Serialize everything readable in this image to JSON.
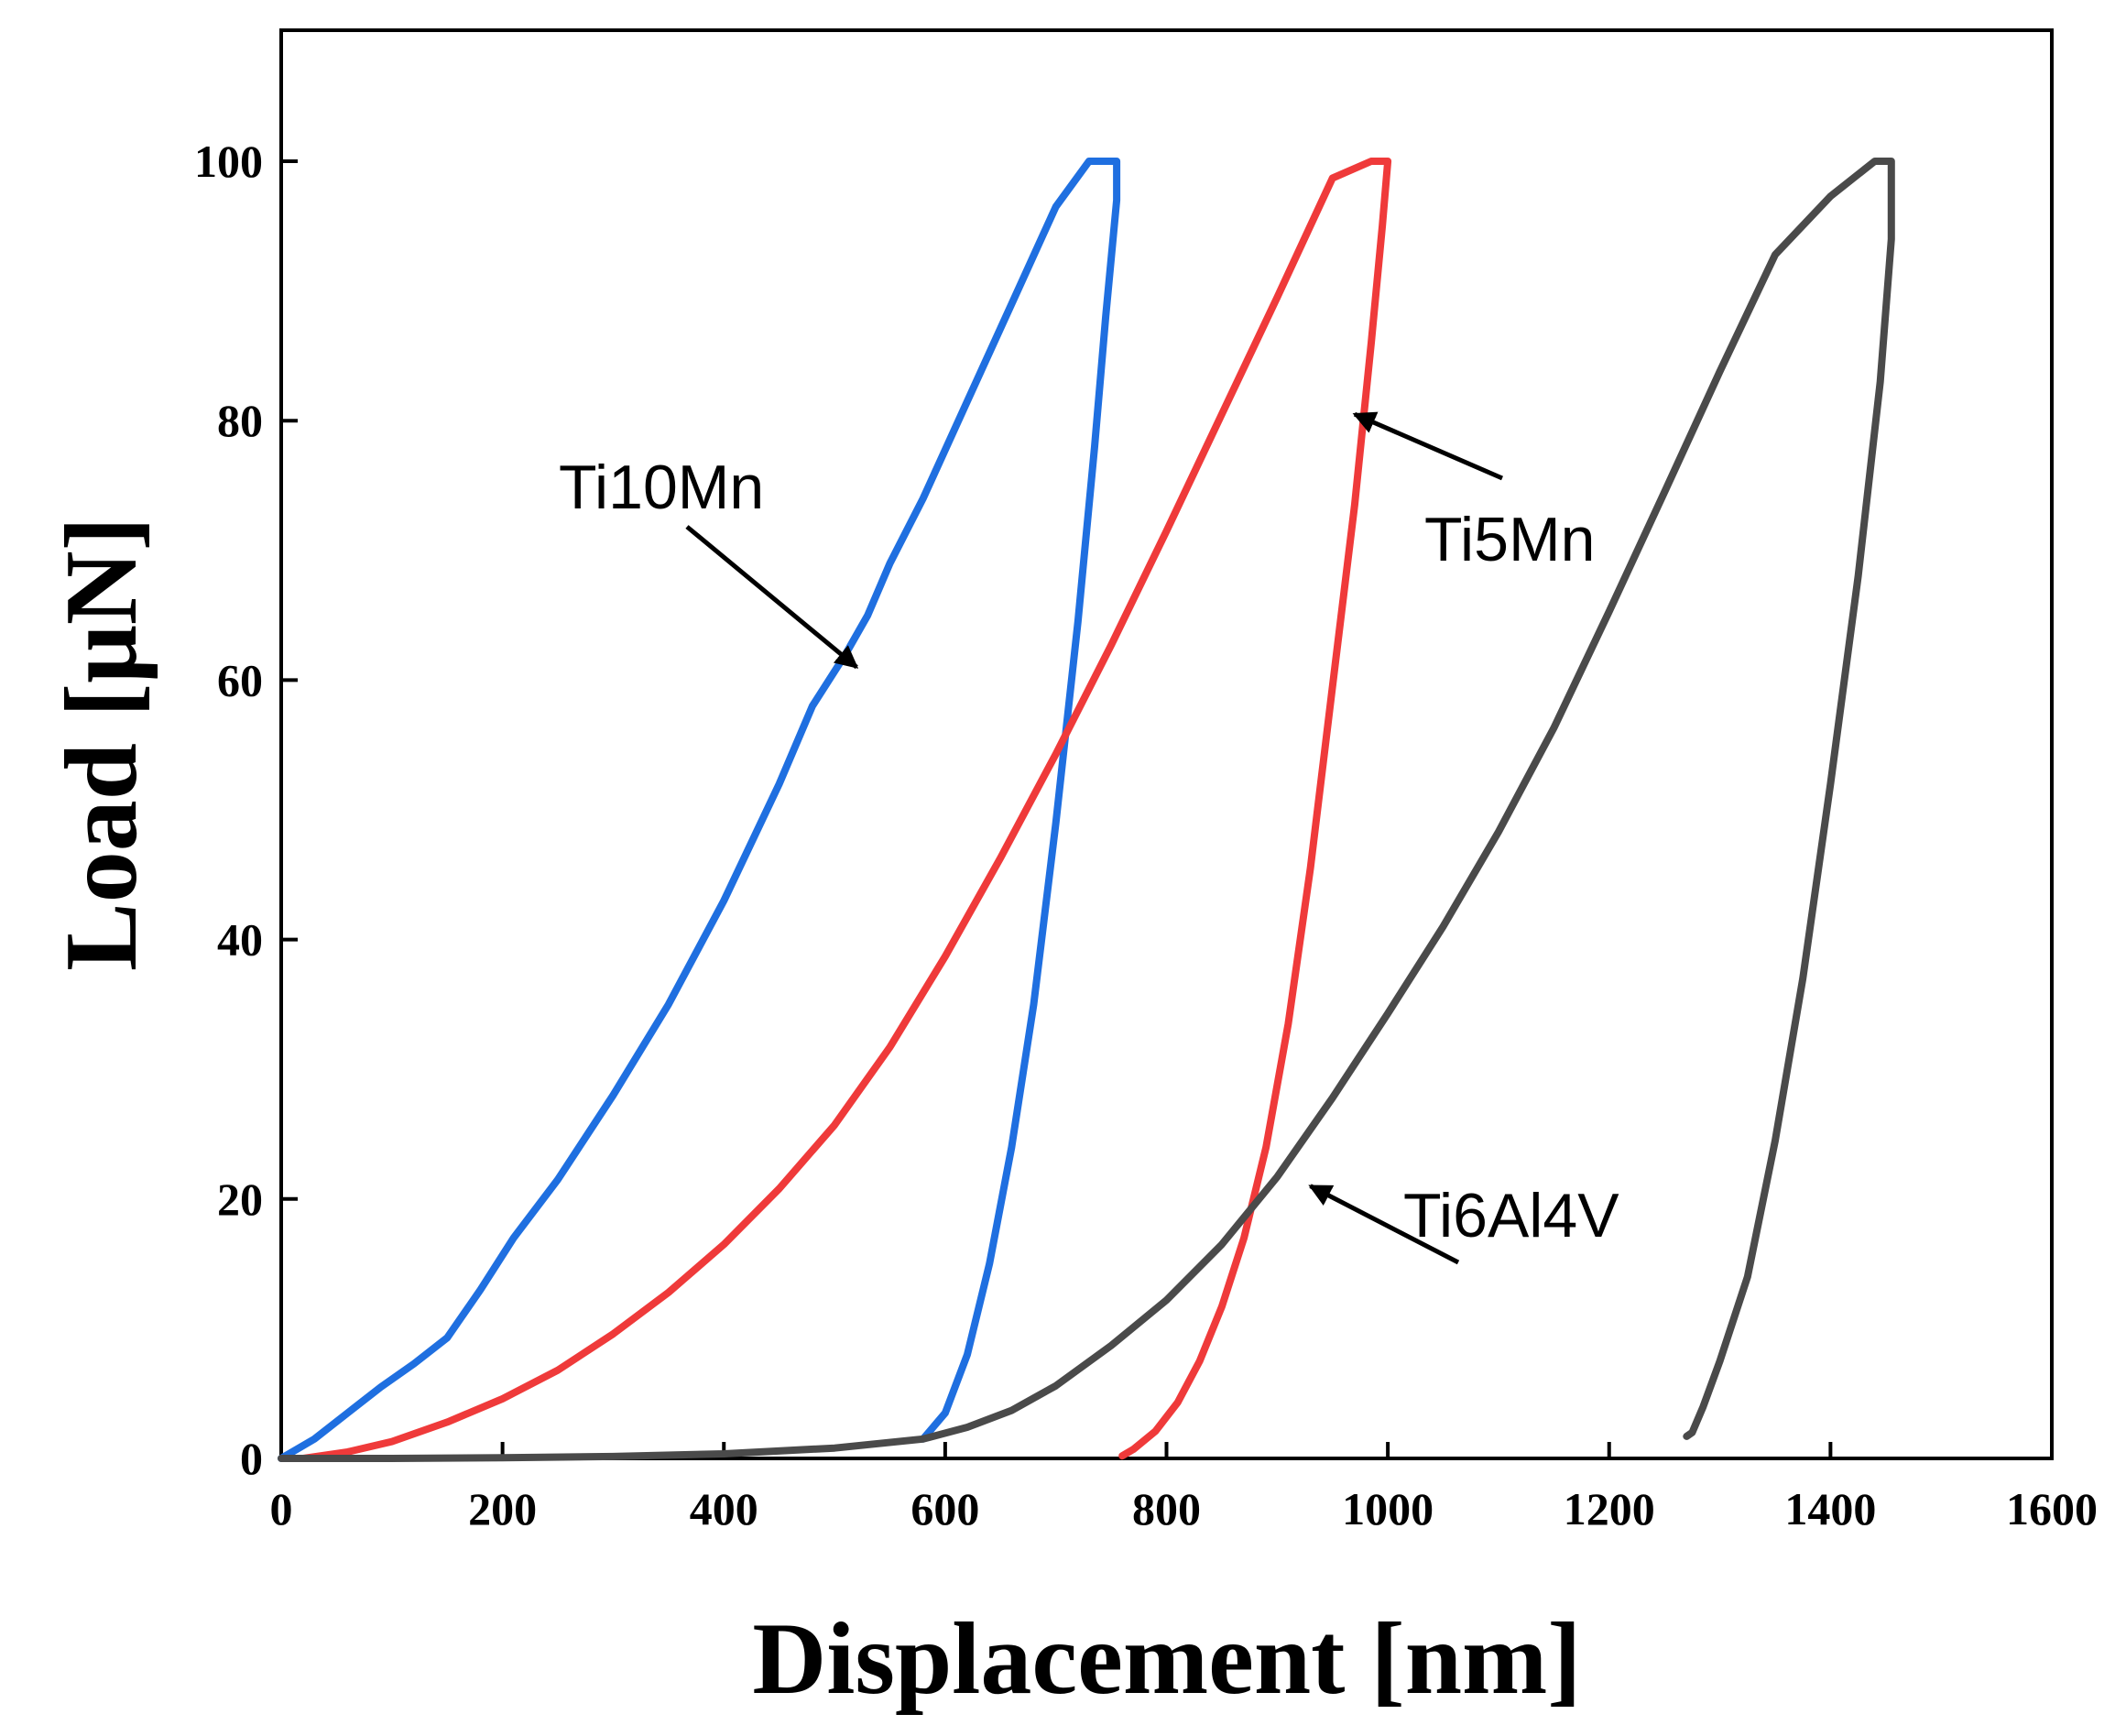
{
  "chart_data": {
    "type": "line",
    "title": "",
    "xlabel": "Displacement [nm]",
    "ylabel": "Load [μN]",
    "xlim": [
      0,
      1600
    ],
    "ylim": [
      0,
      110
    ],
    "xticks": [
      0,
      200,
      400,
      600,
      800,
      1000,
      1200,
      1400,
      1600
    ],
    "yticks": [
      0,
      20,
      40,
      60,
      80,
      100
    ],
    "grid": false,
    "legend": "none",
    "series": [
      {
        "name": "Ti10Mn",
        "color": "#1f6fe0",
        "x": [
          0,
          30,
          60,
          90,
          120,
          150,
          180,
          210,
          250,
          300,
          350,
          400,
          450,
          480,
          510,
          530,
          550,
          580,
          620,
          660,
          700,
          730,
          745,
          755,
          755,
          745,
          735,
          720,
          700,
          680,
          660,
          640,
          620,
          600,
          580
        ],
        "y": [
          0,
          1.5,
          3.5,
          5.5,
          7.3,
          9.3,
          13,
          17,
          21.5,
          28,
          35,
          43,
          52,
          58,
          62,
          65,
          69,
          74,
          81.5,
          89,
          96.5,
          100,
          100,
          100,
          97,
          88,
          78,
          64.5,
          49,
          35,
          24,
          15,
          8,
          3.5,
          1.5
        ]
      },
      {
        "name": "Ti5Mn",
        "color": "#ef3a3a",
        "x": [
          20,
          60,
          100,
          150,
          200,
          250,
          300,
          350,
          400,
          450,
          500,
          550,
          600,
          650,
          700,
          750,
          800,
          850,
          900,
          950,
          985,
          1000,
          995,
          985,
          970,
          950,
          930,
          910,
          890,
          870,
          850,
          830,
          810,
          790,
          770,
          760
        ],
        "y": [
          0,
          0.5,
          1.3,
          2.8,
          4.6,
          6.8,
          9.6,
          12.8,
          16.5,
          20.8,
          25.7,
          31.7,
          38.7,
          46.3,
          54.3,
          62.7,
          71.5,
          80.5,
          89.5,
          98.7,
          100,
          100,
          95,
          86,
          73.5,
          59.5,
          45.5,
          33.5,
          24,
          17,
          11.7,
          7.5,
          4.3,
          2.1,
          0.7,
          0.2
        ]
      },
      {
        "name": "Ti6Al4V",
        "color": "#4a4a4a",
        "x": [
          0,
          100,
          200,
          300,
          400,
          500,
          580,
          620,
          660,
          700,
          750,
          800,
          850,
          900,
          950,
          1000,
          1050,
          1100,
          1150,
          1200,
          1250,
          1300,
          1350,
          1400,
          1440,
          1455,
          1455,
          1445,
          1425,
          1400,
          1375,
          1350,
          1325,
          1300,
          1285,
          1275,
          1270
        ],
        "y": [
          0,
          0,
          0.05,
          0.15,
          0.35,
          0.8,
          1.5,
          2.4,
          3.7,
          5.6,
          8.7,
          12.2,
          16.5,
          21.7,
          27.8,
          34.3,
          41,
          48.3,
          56.3,
          65.3,
          74.5,
          83.8,
          92.8,
          97.3,
          100,
          100,
          94,
          83,
          68,
          52,
          37,
          24.5,
          14,
          7.5,
          4,
          2,
          1.7
        ]
      }
    ],
    "annotations": [
      {
        "text": "Ti10Mn",
        "target": "Ti10Mn",
        "points_to_x": 520,
        "points_to_y": 61
      },
      {
        "text": "Ti5Mn",
        "target": "Ti5Mn",
        "points_to_x": 970,
        "points_to_y": 80.5
      },
      {
        "text": "Ti6Al4V",
        "target": "Ti6Al4V",
        "points_to_x": 930,
        "points_to_y": 21
      }
    ]
  }
}
